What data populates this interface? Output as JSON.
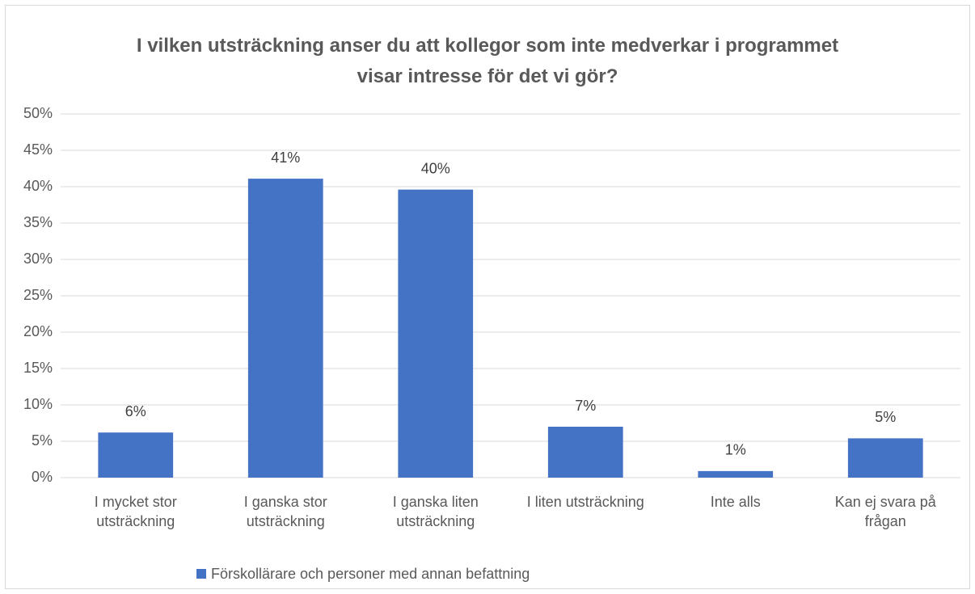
{
  "chart_data": {
    "type": "bar",
    "title": "I vilken utsträckning anser du att kollegor som inte medverkar i programmet visar intresse för det vi gör?",
    "categories": [
      "I mycket stor utsträckning",
      "I ganska stor utsträckning",
      "I ganska liten utsträckning",
      "I liten utsträckning",
      "Inte alls",
      "Kan ej svara på frågan"
    ],
    "series": [
      {
        "name": "Förskollärare och personer med annan befattning",
        "color": "#4472c4",
        "values": [
          6.2,
          41.1,
          39.6,
          7.0,
          0.9,
          5.4
        ],
        "value_labels": [
          "6%",
          "41%",
          "40%",
          "7%",
          "1%",
          "5%"
        ]
      }
    ],
    "ylim": [
      0,
      50
    ],
    "yticks": [
      {
        "value": 0,
        "label": "0%"
      },
      {
        "value": 5,
        "label": "5%"
      },
      {
        "value": 10,
        "label": "10%"
      },
      {
        "value": 15,
        "label": "15%"
      },
      {
        "value": 20,
        "label": "20%"
      },
      {
        "value": 25,
        "label": "25%"
      },
      {
        "value": 30,
        "label": "30%"
      },
      {
        "value": 35,
        "label": "35%"
      },
      {
        "value": 40,
        "label": "40%"
      },
      {
        "value": 45,
        "label": "45%"
      },
      {
        "value": 50,
        "label": "50%"
      }
    ],
    "grid": true,
    "legend": "bottom"
  }
}
